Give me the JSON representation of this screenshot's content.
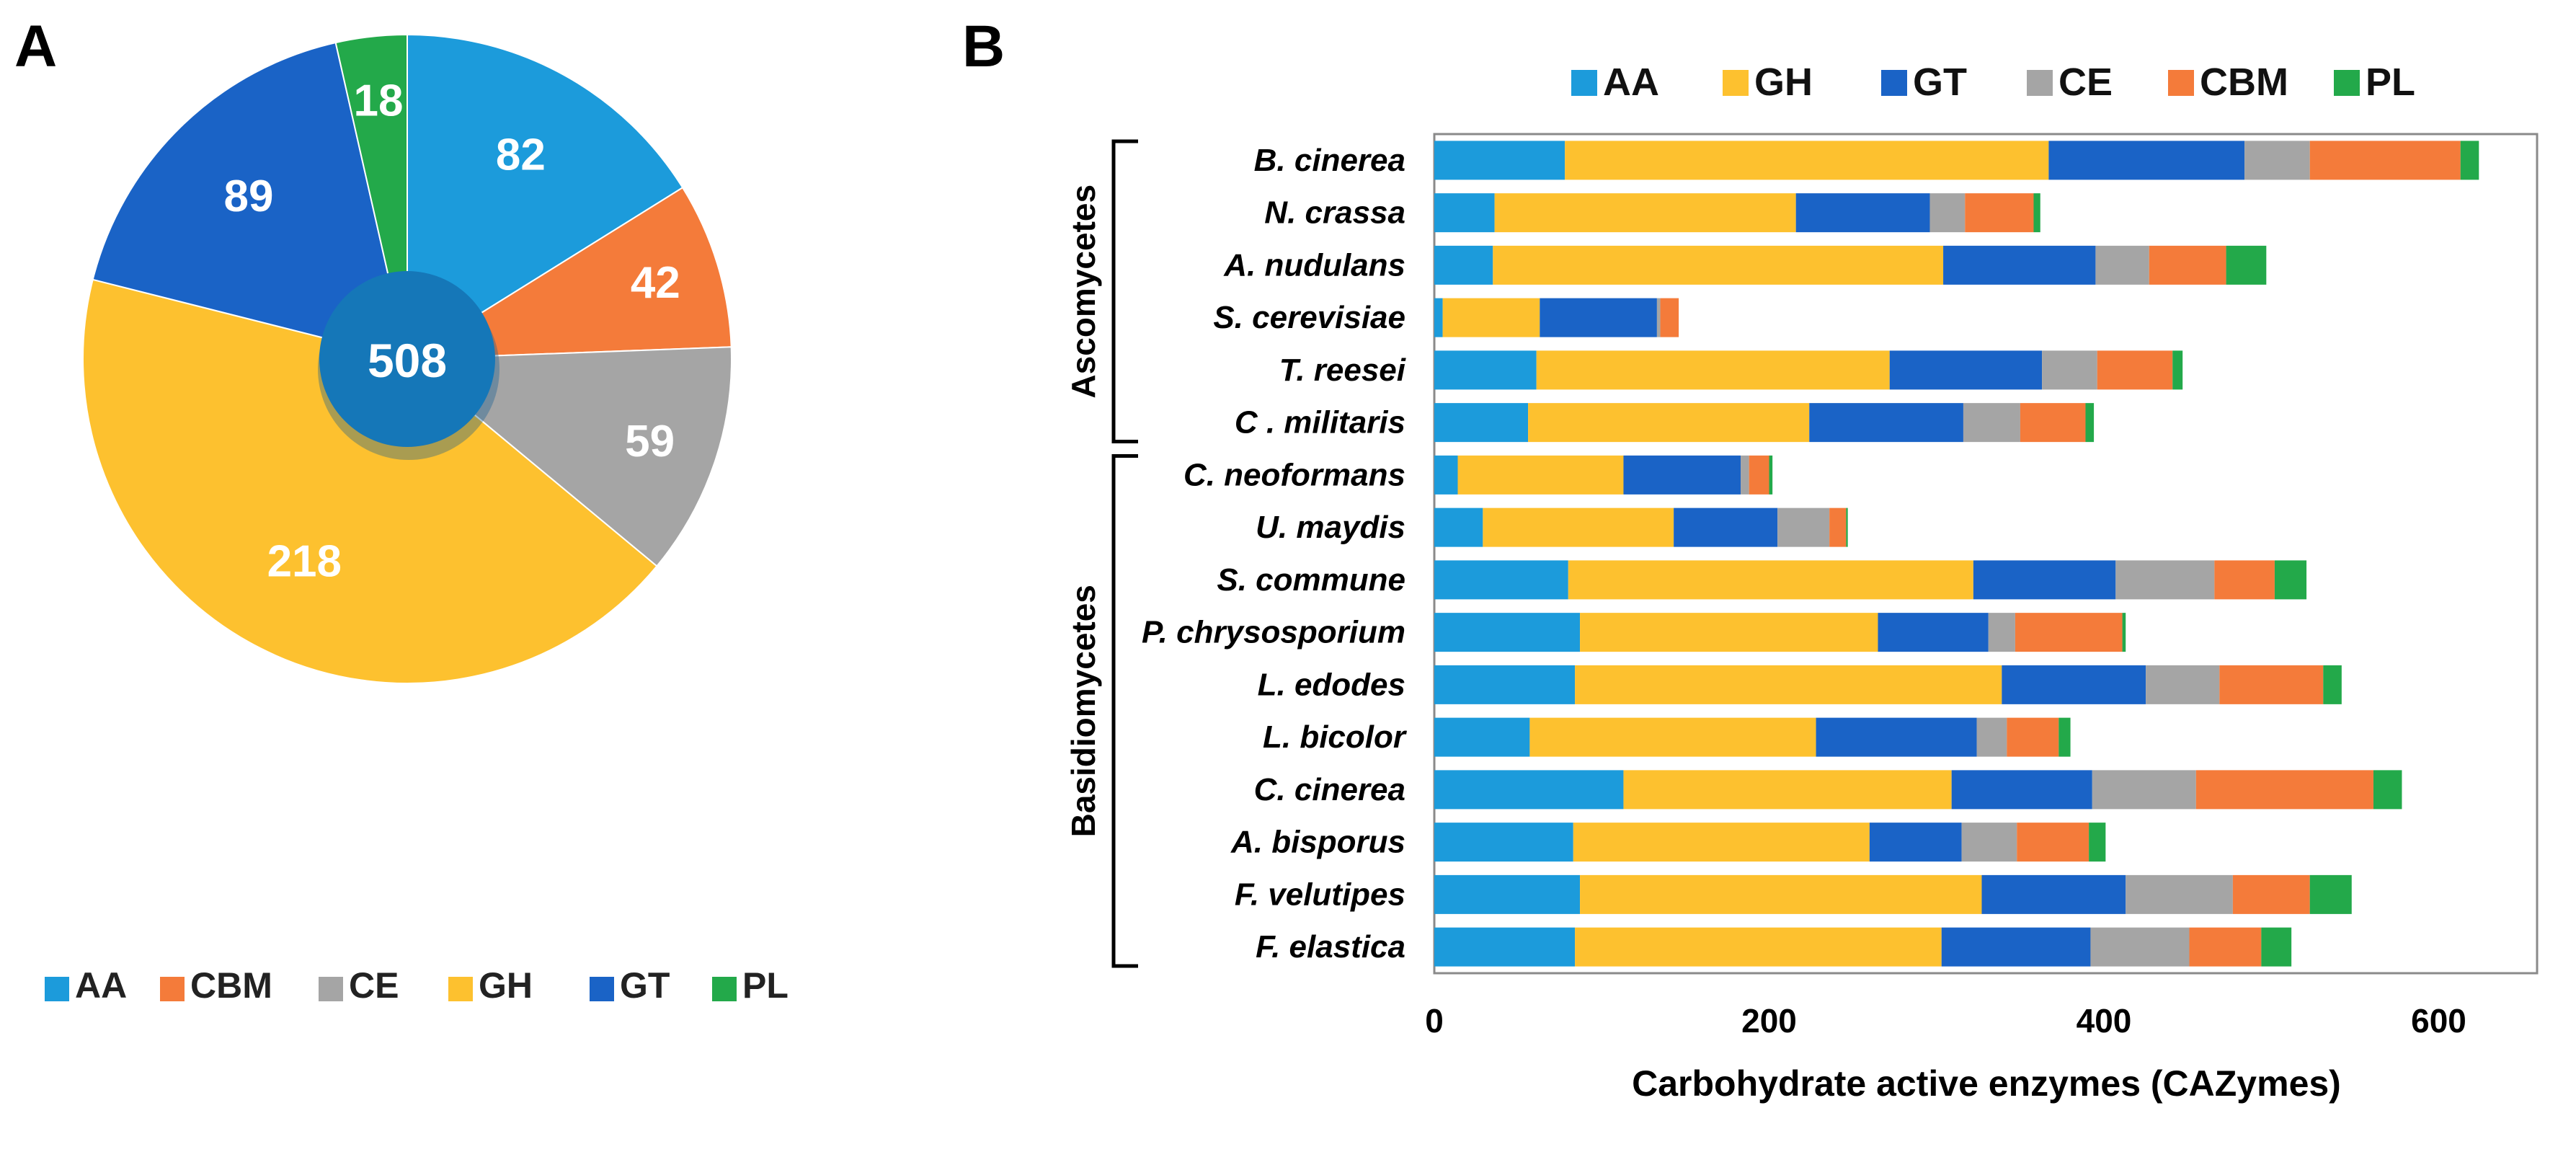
{
  "panel_a": {
    "label": "A",
    "center_total": "508"
  },
  "panel_b": {
    "label": "B",
    "group_labels": [
      "Ascomycetes",
      "Basidiomycetes"
    ]
  },
  "colors": {
    "AA": "#1C9BDB",
    "CBM": "#F47B3A",
    "CE": "#A5A5A5",
    "GH": "#FDC12F",
    "GT": "#1A63C6",
    "PL": "#23A94A",
    "center_circle": "#1577B8"
  },
  "chart_data": [
    {
      "type": "pie",
      "title": "",
      "center_label": "508",
      "labels": [
        "AA",
        "CBM",
        "CE",
        "GH",
        "GT",
        "PL"
      ],
      "values": [
        82,
        42,
        59,
        218,
        89,
        18
      ],
      "legend": [
        "AA",
        "CBM",
        "CE",
        "GH",
        "GT",
        "PL"
      ],
      "legend_position": "bottom"
    },
    {
      "type": "bar",
      "orientation": "horizontal",
      "stacked": true,
      "categories": [
        "B. cinerea",
        "N. crassa",
        "A. nudulans",
        "S. cerevisiae",
        "T. reesei",
        "C . militaris",
        "C. neoformans",
        "U. maydis",
        "S. commune",
        "P. chrysosporium",
        "L. edodes",
        "L. bicolor",
        "C. cinerea",
        "A. bisporus",
        "F. velutipes",
        "F. elastica"
      ],
      "series": [
        {
          "name": "AA",
          "values": [
            78,
            36,
            35,
            5,
            61,
            56,
            14,
            29,
            80,
            87,
            84,
            57,
            113,
            83,
            87,
            84
          ]
        },
        {
          "name": "GH",
          "values": [
            289,
            180,
            269,
            58,
            211,
            168,
            99,
            114,
            242,
            178,
            255,
            171,
            196,
            177,
            240,
            219
          ]
        },
        {
          "name": "GT",
          "values": [
            117,
            80,
            91,
            70,
            91,
            92,
            70,
            62,
            85,
            66,
            86,
            96,
            84,
            55,
            86,
            89
          ]
        },
        {
          "name": "CE",
          "values": [
            39,
            21,
            32,
            2,
            33,
            34,
            5,
            31,
            59,
            16,
            44,
            18,
            62,
            33,
            64,
            59
          ]
        },
        {
          "name": "CBM",
          "values": [
            90,
            41,
            46,
            11,
            45,
            39,
            12,
            10,
            36,
            64,
            62,
            31,
            106,
            43,
            46,
            43
          ]
        },
        {
          "name": "PL",
          "values": [
            11,
            4,
            24,
            0,
            6,
            5,
            2,
            1,
            19,
            2,
            11,
            7,
            17,
            10,
            25,
            18
          ]
        }
      ],
      "group_labels": [
        {
          "name": "Ascomycetes",
          "first": 0,
          "last": 5
        },
        {
          "name": "Basidiomycetes",
          "first": 6,
          "last": 15
        }
      ],
      "xlabel": "Carbohydrate active enzymes (CAZymes)",
      "ylabel": "",
      "xlim": [
        0,
        650
      ],
      "xticks": [
        0,
        200,
        400,
        600
      ],
      "legend": [
        "AA",
        "GH",
        "GT",
        "CE",
        "CBM",
        "PL"
      ],
      "legend_position": "top",
      "grid": false
    }
  ]
}
